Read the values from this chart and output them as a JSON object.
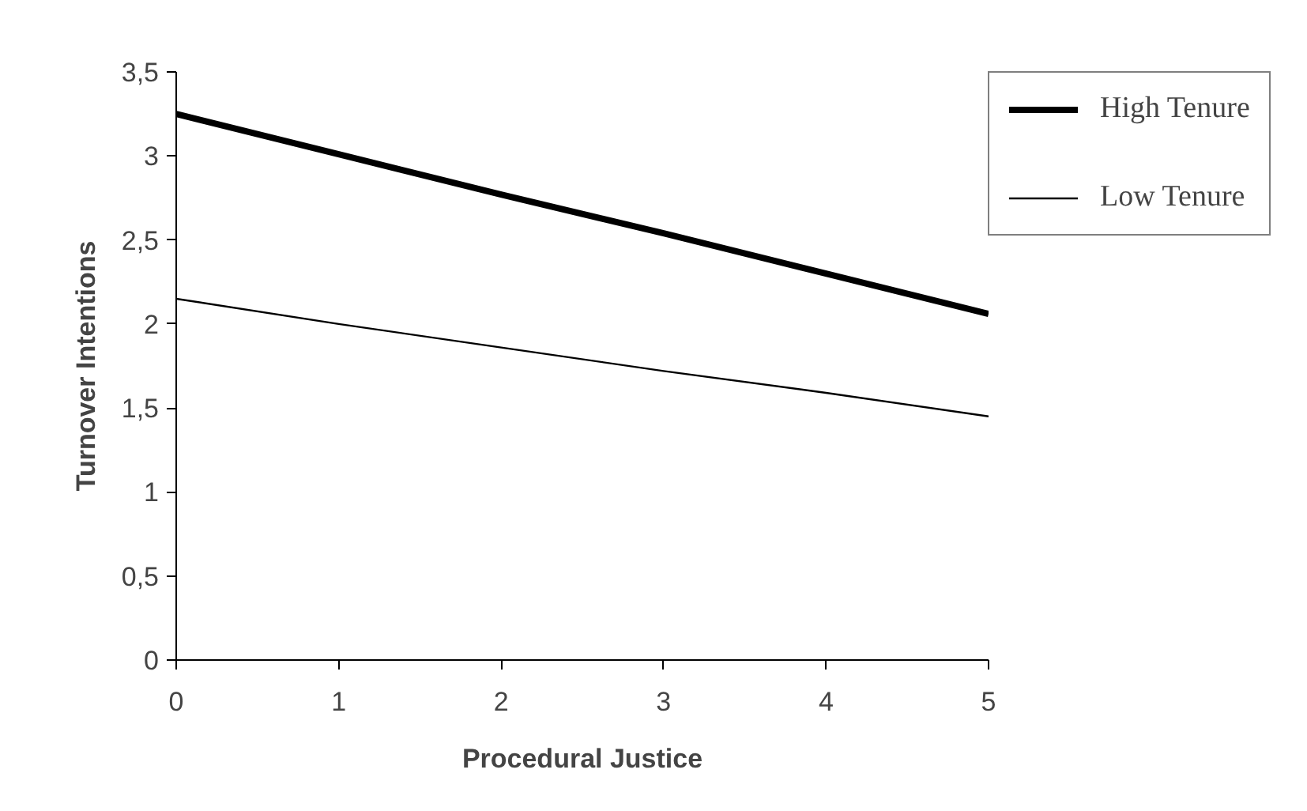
{
  "chart_data": {
    "type": "line",
    "xlabel": "Procedural Justice",
    "ylabel": "Turnover Intentions",
    "x": [
      0,
      1,
      2,
      3,
      4,
      5
    ],
    "series": [
      {
        "name": "High Tenure",
        "color": "#000000",
        "values": [
          3.25,
          3.01,
          2.77,
          2.54,
          2.3,
          2.06
        ]
      },
      {
        "name": "Low Tenure",
        "color": "#000000",
        "values": [
          2.15,
          2.0,
          1.86,
          1.72,
          1.59,
          1.45
        ]
      }
    ],
    "xlim": [
      0,
      5
    ],
    "xticks": [
      0,
      1,
      2,
      3,
      4,
      5
    ],
    "ylim": [
      0,
      3.5
    ],
    "yticks": [
      0,
      {
        "value": 0.5,
        "label": "0,5"
      },
      1,
      {
        "value": 1.5,
        "label": "1,5"
      },
      2,
      {
        "value": 2.5,
        "label": "2,5"
      },
      3,
      {
        "value": 3.5,
        "label": "3,5"
      }
    ],
    "grid": false,
    "legend": "top right",
    "marker": "none",
    "line_style": "solid"
  }
}
